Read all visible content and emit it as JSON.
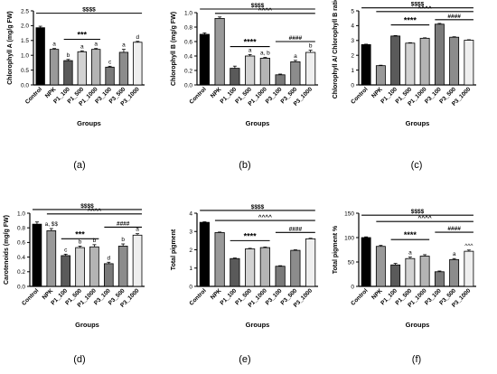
{
  "figure": {
    "panel_labels": [
      "(a)",
      "(b)",
      "(c)",
      "(d)",
      "(e)",
      "(f)"
    ]
  },
  "chart_data": [
    {
      "type": "bar",
      "ylabel": "Chlorophyll A (mg/g FW)",
      "xlabel": "Groups",
      "ylim": [
        0,
        2.5
      ],
      "yticks": [
        "0.0",
        "0.5",
        "1.0",
        "1.5",
        "2.0",
        "2.5"
      ],
      "categories": [
        "Control",
        "NPK",
        "P1_100",
        "P1_500",
        "P1_1000",
        "P3_100",
        "P3_500",
        "P3_1000"
      ],
      "values": [
        1.93,
        1.2,
        0.82,
        1.12,
        1.2,
        0.6,
        1.1,
        1.44
      ],
      "errors": [
        0.05,
        0.03,
        0.04,
        0.03,
        0.03,
        0.03,
        0.1,
        0.03
      ],
      "bar_labels": [
        "",
        "a",
        "b",
        "a",
        "a",
        "c",
        "a",
        "d"
      ],
      "annotations": [
        {
          "text": "$$$$",
          "from": 0,
          "to": 7,
          "y": 2.42
        },
        {
          "text": "***",
          "from": 2,
          "to": 4,
          "y": 1.54
        }
      ]
    },
    {
      "type": "bar",
      "ylabel": "Chlorophyll B (mg/g FW)",
      "xlabel": "Groups",
      "ylim": [
        0,
        1.0
      ],
      "yticks": [
        "0.0",
        "0.2",
        "0.4",
        "0.6",
        "0.8",
        "1.0"
      ],
      "categories": [
        "Control",
        "NPK",
        "P1_100",
        "P1_500",
        "P1_1000",
        "P3_100",
        "P3_500",
        "P3_1000"
      ],
      "values": [
        0.7,
        0.92,
        0.23,
        0.4,
        0.37,
        0.14,
        0.32,
        0.45
      ],
      "errors": [
        0.02,
        0.02,
        0.03,
        0.02,
        0.01,
        0.01,
        0.02,
        0.03
      ],
      "bar_labels": [
        "",
        "",
        "",
        "a",
        "a, b",
        "",
        "a",
        "b"
      ],
      "annotations": [
        {
          "text": "$$$$",
          "from": 0,
          "to": 7,
          "y": 1.05
        },
        {
          "text": "^^^^",
          "from": 1,
          "to": 7,
          "y": 0.99
        },
        {
          "text": "****",
          "from": 2,
          "to": 4,
          "y": 0.53
        },
        {
          "text": "####",
          "from": 5,
          "to": 7,
          "y": 0.6
        }
      ]
    },
    {
      "type": "bar",
      "ylabel": "Chlorophyll A/ Chlorophyll B ratio",
      "xlabel": "Groups",
      "ylim": [
        0,
        5
      ],
      "yticks": [
        "0",
        "1",
        "2",
        "3",
        "4",
        "5"
      ],
      "categories": [
        "Control",
        "NPK",
        "P1_100",
        "P1_500",
        "P1_1000",
        "P3_100",
        "P3_500",
        "P3_1000"
      ],
      "values": [
        2.72,
        1.3,
        3.3,
        2.82,
        3.15,
        4.1,
        3.22,
        3.02
      ],
      "errors": [
        0.03,
        0.03,
        0.03,
        0.03,
        0.03,
        0.05,
        0.03,
        0.03
      ],
      "bar_labels": [
        "",
        "",
        "",
        "",
        "",
        "",
        "",
        ""
      ],
      "annotations": [
        {
          "text": "$$$$",
          "from": 0,
          "to": 7,
          "y": 5.2
        },
        {
          "text": "^^^^",
          "from": 1,
          "to": 7,
          "y": 4.95
        },
        {
          "text": "****",
          "from": 2,
          "to": 4,
          "y": 4.05
        },
        {
          "text": "####",
          "from": 5,
          "to": 7,
          "y": 4.4
        }
      ]
    },
    {
      "type": "bar",
      "ylabel": "Carotenoids (mg/g FW)",
      "xlabel": "Groups",
      "ylim": [
        0,
        1.0
      ],
      "yticks": [
        "0.0",
        "0.2",
        "0.4",
        "0.6",
        "0.8",
        "1.0"
      ],
      "categories": [
        "Control",
        "NPK",
        "P1_100",
        "P1_500",
        "P1_1000",
        "P3_100",
        "P3_500",
        "P3_1000"
      ],
      "values": [
        0.85,
        0.76,
        0.42,
        0.53,
        0.54,
        0.31,
        0.55,
        0.7
      ],
      "errors": [
        0.03,
        0.03,
        0.02,
        0.02,
        0.03,
        0.02,
        0.03,
        0.02
      ],
      "bar_labels": [
        "",
        "a, $$",
        "c",
        "b",
        "b",
        "d",
        "b",
        "a"
      ],
      "annotations": [
        {
          "text": "$$$$",
          "from": 0,
          "to": 7,
          "y": 1.05
        },
        {
          "text": "^^^^",
          "from": 1,
          "to": 7,
          "y": 0.99
        },
        {
          "text": "***",
          "from": 2,
          "to": 4,
          "y": 0.65
        },
        {
          "text": "####",
          "from": 5,
          "to": 7,
          "y": 0.81
        }
      ]
    },
    {
      "type": "bar",
      "ylabel": "Total pigment",
      "xlabel": "Groups",
      "ylim": [
        0,
        4
      ],
      "yticks": [
        "0",
        "1",
        "2",
        "3",
        "4"
      ],
      "categories": [
        "Control",
        "NPK",
        "P1_100",
        "P1_500",
        "P1_1000",
        "P3_100",
        "P3_500",
        "P3_1000"
      ],
      "values": [
        3.5,
        2.94,
        1.52,
        2.05,
        2.12,
        1.1,
        1.97,
        2.6
      ],
      "errors": [
        0.03,
        0.03,
        0.03,
        0.03,
        0.03,
        0.03,
        0.03,
        0.03
      ],
      "bar_labels": [
        "",
        "",
        "",
        "",
        "",
        "",
        "",
        ""
      ],
      "annotations": [
        {
          "text": "$$$$",
          "from": 0,
          "to": 7,
          "y": 4.15
        },
        {
          "text": "^^^^",
          "from": 1,
          "to": 7,
          "y": 3.6
        },
        {
          "text": "****",
          "from": 2,
          "to": 4,
          "y": 2.5
        },
        {
          "text": "####",
          "from": 5,
          "to": 7,
          "y": 2.95
        }
      ]
    },
    {
      "type": "bar",
      "ylabel": "Total pigment %",
      "xlabel": "Groups",
      "ylim": [
        0,
        150
      ],
      "yticks": [
        "0",
        "50",
        "100",
        "150"
      ],
      "categories": [
        "Control",
        "NPK",
        "P1_100",
        "P1_500",
        "P1_1000",
        "P3_100",
        "P3_500",
        "P3_1000"
      ],
      "values": [
        100,
        82,
        44,
        57,
        62,
        30,
        55,
        72
      ],
      "errors": [
        1.5,
        2,
        3,
        3,
        3,
        1.5,
        2,
        2.5
      ],
      "bar_labels": [
        "",
        "",
        "",
        "a",
        "",
        "",
        "a",
        "^^^"
      ],
      "annotations": [
        {
          "text": "$$$$",
          "from": 0,
          "to": 7,
          "y": 146
        },
        {
          "text": "^^^^",
          "from": 1,
          "to": 7,
          "y": 133
        },
        {
          "text": "****",
          "from": 2,
          "to": 4,
          "y": 96
        },
        {
          "text": "####",
          "from": 5,
          "to": 7,
          "y": 111
        }
      ]
    }
  ],
  "colors": {
    "bars": [
      "#000000",
      "#999999",
      "#5a5a5a",
      "#d2d2d2",
      "#b4b4b4",
      "#7a7a7a",
      "#8c8c8c",
      "#efefef"
    ],
    "axis": "#000000"
  }
}
